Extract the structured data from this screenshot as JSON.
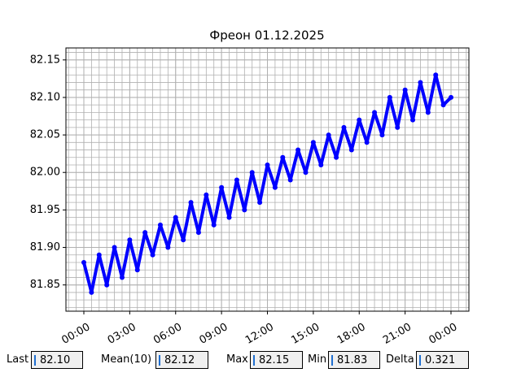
{
  "chart_data": {
    "type": "line",
    "title": "Фреон 01.12.2025",
    "series": [
      {
        "color": "#0000ff",
        "x": [
          0,
          0.5,
          1,
          1.5,
          2,
          2.5,
          3,
          3.5,
          4,
          4.5,
          5,
          5.5,
          6,
          6.5,
          7,
          7.5,
          8,
          8.5,
          9,
          9.5,
          10,
          10.5,
          11,
          11.5,
          12,
          12.5,
          13,
          13.5,
          14,
          14.5,
          15,
          15.5,
          16,
          16.5,
          17,
          17.5,
          18,
          18.5,
          19,
          19.5,
          20,
          20.5,
          21,
          21.5,
          22,
          22.5,
          23,
          23.5,
          24
        ],
        "values": [
          81.88,
          81.84,
          81.89,
          81.85,
          81.9,
          81.86,
          81.91,
          81.87,
          81.92,
          81.89,
          81.93,
          81.9,
          81.94,
          81.91,
          81.96,
          81.92,
          81.97,
          81.93,
          81.98,
          81.94,
          81.99,
          81.95,
          82.0,
          81.96,
          82.01,
          81.98,
          82.02,
          81.99,
          82.03,
          82.0,
          82.04,
          82.01,
          82.05,
          82.02,
          82.06,
          82.03,
          82.07,
          82.04,
          82.08,
          82.05,
          82.1,
          82.06,
          82.11,
          82.07,
          82.12,
          82.08,
          82.13,
          82.09,
          82.1
        ]
      }
    ],
    "xlim": [
      -1.17,
      25.17
    ],
    "xticks": [
      {
        "value": 0,
        "label": "00:00"
      },
      {
        "value": 3,
        "label": "03:00"
      },
      {
        "value": 6,
        "label": "06:00"
      },
      {
        "value": 9,
        "label": "09:00"
      },
      {
        "value": 12,
        "label": "12:00"
      },
      {
        "value": 15,
        "label": "15:00"
      },
      {
        "value": 18,
        "label": "18:00"
      },
      {
        "value": 21,
        "label": "21:00"
      },
      {
        "value": 24,
        "label": "00:00"
      }
    ],
    "ylim": [
      81.815,
      82.166
    ],
    "yticks": [
      81.85,
      {
        "value": 81.9,
        "label": "81.90"
      },
      81.95,
      {
        "value": 82.0,
        "label": "82.00"
      },
      82.05,
      {
        "value": 82.1,
        "label": "82.10"
      },
      82.15
    ],
    "grid": true,
    "x_minor_step": 0.5,
    "y_minor_step": 0.01
  },
  "readouts": [
    {
      "label": "Last",
      "value": "82.10"
    },
    {
      "label": "Mean(10)",
      "value": "82.12"
    },
    {
      "label": "Max",
      "value": "82.15"
    },
    {
      "label": "Min",
      "value": "81.83"
    },
    {
      "label": "Delta",
      "value": "0.321"
    }
  ]
}
